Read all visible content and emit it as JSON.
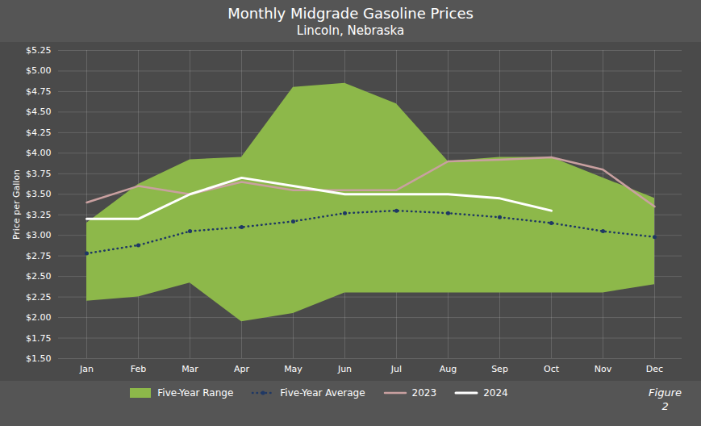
{
  "chart_data": {
    "type": "line",
    "title": "Monthly Midgrade Gasoline Prices",
    "subtitle": "Lincoln, Nebraska",
    "ylabel": "Price per Gallon",
    "annotation": "Figure\n2",
    "categories": [
      "Jan",
      "Feb",
      "Mar",
      "Apr",
      "May",
      "Jun",
      "Jul",
      "Aug",
      "Sep",
      "Oct",
      "Nov",
      "Dec"
    ],
    "series": [
      {
        "name": "Five-Year Range",
        "type": "area",
        "color": "#8db84a",
        "low": [
          2.2,
          2.25,
          2.42,
          1.95,
          2.05,
          2.3,
          2.3,
          2.3,
          2.3,
          2.3,
          2.3,
          2.4
        ],
        "high": [
          3.15,
          3.62,
          3.92,
          3.95,
          4.8,
          4.85,
          4.6,
          3.9,
          3.95,
          3.95,
          3.7,
          3.45
        ]
      },
      {
        "name": "Five-Year Average",
        "type": "line",
        "color": "#1f3864",
        "line_style": "dotted",
        "marker": "o",
        "values": [
          2.78,
          2.88,
          3.05,
          3.1,
          3.17,
          3.27,
          3.3,
          3.27,
          3.22,
          3.15,
          3.05,
          2.98
        ]
      },
      {
        "name": "2023",
        "type": "line",
        "color": "#c9a0a0",
        "line_style": "solid",
        "values": [
          3.4,
          3.6,
          3.5,
          3.65,
          3.55,
          3.55,
          3.55,
          3.9,
          3.92,
          3.95,
          3.8,
          3.35
        ]
      },
      {
        "name": "2024",
        "type": "line",
        "color": "#ffffff",
        "line_style": "solid",
        "values": [
          3.2,
          3.2,
          3.5,
          3.7,
          3.6,
          3.5,
          3.5,
          3.5,
          3.45,
          3.3,
          null,
          null
        ]
      }
    ],
    "ylim": [
      1.5,
      5.25
    ],
    "yticks": [
      {
        "value": 1.5,
        "label": "$1.50"
      },
      {
        "value": 1.75,
        "label": "$1.75"
      },
      {
        "value": 2.0,
        "label": "$2.00"
      },
      {
        "value": 2.25,
        "label": "$2.25"
      },
      {
        "value": 2.5,
        "label": "$2.50"
      },
      {
        "value": 2.75,
        "label": "$2.75"
      },
      {
        "value": 3.0,
        "label": "$3.00"
      },
      {
        "value": 3.25,
        "label": "$3.25"
      },
      {
        "value": 3.5,
        "label": "$3.50"
      },
      {
        "value": 3.75,
        "label": "$3.75"
      },
      {
        "value": 4.0,
        "label": "$4.00"
      },
      {
        "value": 4.25,
        "label": "$4.25"
      },
      {
        "value": 4.5,
        "label": "$4.50"
      },
      {
        "value": 4.75,
        "label": "$4.75"
      },
      {
        "value": 5.0,
        "label": "$5.00"
      },
      {
        "value": 5.25,
        "label": "$5.25"
      }
    ],
    "grid": true,
    "legend": "bottom"
  }
}
